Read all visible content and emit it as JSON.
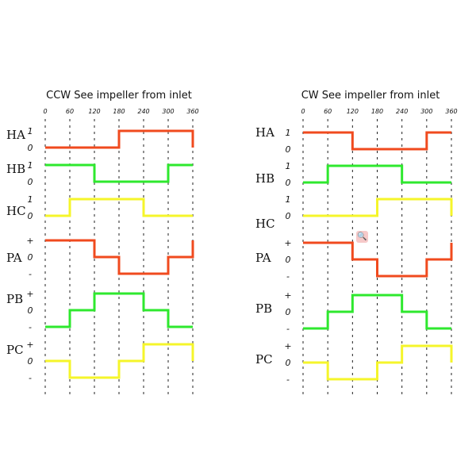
{
  "colors": {
    "red": "#f04a1e",
    "green": "#2ee82e",
    "yellow": "#f5f52a",
    "grid": "#222222"
  },
  "ticks": [
    "0",
    "60",
    "120",
    "180",
    "240",
    "300",
    "360"
  ],
  "diagrams": [
    {
      "title": "CCW See impeller from inlet",
      "rows": [
        {
          "label": "HA",
          "type": "hall",
          "levels_labels": [
            "1",
            "0"
          ],
          "color": "red",
          "segments": [
            0,
            0,
            0,
            1,
            1,
            1
          ],
          "end": 0
        },
        {
          "label": "HB",
          "type": "hall",
          "levels_labels": [
            "1",
            "0"
          ],
          "color": "green",
          "segments": [
            1,
            1,
            0,
            0,
            0,
            1
          ],
          "end": null
        },
        {
          "label": "HC",
          "type": "hall",
          "levels_labels": [
            "1",
            "0"
          ],
          "color": "yellow",
          "segments": [
            0,
            1,
            1,
            1,
            0,
            0
          ],
          "end": null
        },
        {
          "label": "PA",
          "type": "phase",
          "levels_labels": [
            "+",
            "0",
            "-"
          ],
          "color": "red",
          "segments": [
            1,
            1,
            0,
            -1,
            -1,
            0
          ],
          "end": 1
        },
        {
          "label": "PB",
          "type": "phase",
          "levels_labels": [
            "+",
            "0",
            "-"
          ],
          "color": "green",
          "segments": [
            -1,
            0,
            1,
            1,
            0,
            -1
          ],
          "end": null
        },
        {
          "label": "PC",
          "type": "phase",
          "levels_labels": [
            "+",
            "0",
            "-"
          ],
          "color": "yellow",
          "segments": [
            0,
            -1,
            -1,
            0,
            1,
            1
          ],
          "end": 0
        }
      ]
    },
    {
      "title": "CW See impeller from inlet",
      "rows": [
        {
          "label": "HA",
          "type": "hall",
          "levels_labels": [
            "1",
            "0"
          ],
          "color": "red",
          "segments": [
            1,
            1,
            0,
            0,
            0,
            1
          ],
          "end": null
        },
        {
          "label": "HB",
          "type": "hall",
          "levels_labels": [
            "1",
            "0"
          ],
          "color": "green",
          "segments": [
            0,
            1,
            1,
            1,
            0,
            0
          ],
          "end": null
        },
        {
          "label": "HC",
          "type": "hall",
          "levels_labels": [
            "1",
            "0"
          ],
          "color": "yellow",
          "segments": [
            0,
            0,
            0,
            1,
            1,
            1
          ],
          "end": 0
        },
        {
          "label": "PA",
          "type": "phase",
          "levels_labels": [
            "+",
            "0",
            "-"
          ],
          "color": "red",
          "segments": [
            1,
            1,
            0,
            -1,
            -1,
            0
          ],
          "end": 1
        },
        {
          "label": "PB",
          "type": "phase",
          "levels_labels": [
            "+",
            "0",
            "-"
          ],
          "color": "green",
          "segments": [
            -1,
            0,
            1,
            1,
            0,
            -1
          ],
          "end": null
        },
        {
          "label": "PC",
          "type": "phase",
          "levels_labels": [
            "+",
            "0",
            "-"
          ],
          "color": "yellow",
          "segments": [
            0,
            -1,
            -1,
            0,
            1,
            1
          ],
          "end": 0
        }
      ]
    }
  ],
  "zoom_icon": "magnifier-icon"
}
